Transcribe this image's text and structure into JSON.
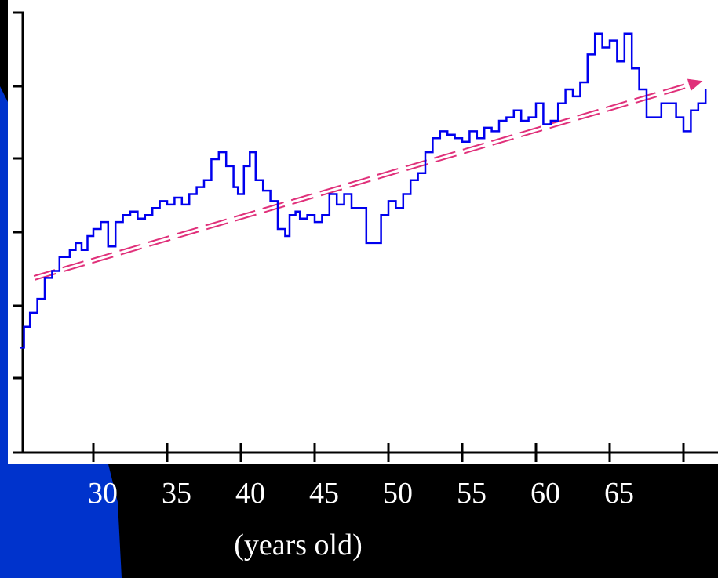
{
  "chart_data": {
    "type": "line",
    "title": "",
    "xlabel": "(years old)",
    "ylabel": "",
    "x_tick_labels": [
      "30",
      "35",
      "40",
      "45",
      "50",
      "55",
      "60",
      "65"
    ],
    "xlim": [
      25,
      72
    ],
    "ylim": [
      0,
      6.3
    ],
    "grid": false,
    "legend": "none",
    "series": [
      {
        "type": "line",
        "color": "#0000ee",
        "x": [
          25.0,
          25.3,
          25.7,
          26.2,
          26.7,
          27.2,
          27.7,
          28.0,
          28.4,
          28.8,
          29.2,
          29.6,
          30.0,
          30.5,
          31.0,
          31.5,
          32.0,
          32.5,
          33.0,
          33.5,
          34.0,
          34.5,
          35.0,
          35.5,
          36.0,
          36.5,
          37.0,
          37.5,
          38.0,
          38.5,
          39.0,
          39.5,
          39.8,
          40.2,
          40.6,
          41.0,
          41.5,
          42.0,
          42.5,
          42.8,
          43.0,
          43.3,
          43.7,
          44.0,
          44.5,
          45.0,
          45.5,
          46.0,
          46.5,
          47.0,
          47.5,
          48.0,
          48.5,
          49.0,
          49.5,
          50.0,
          50.5,
          51.0,
          51.5,
          52.0,
          52.5,
          53.0,
          53.5,
          54.0,
          54.5,
          55.0,
          55.5,
          56.0,
          56.5,
          57.0,
          57.5,
          58.0,
          58.5,
          59.0,
          59.5,
          60.0,
          60.5,
          61.0,
          61.5,
          62.0,
          62.5,
          63.0,
          63.5,
          64.0,
          64.5,
          65.0,
          65.5,
          66.0,
          66.5,
          67.0,
          67.5,
          68.0,
          68.5,
          69.0,
          69.5,
          70.0,
          70.5,
          71.0,
          71.5
        ],
        "y": [
          1.5,
          1.8,
          2.0,
          2.2,
          2.5,
          2.6,
          2.8,
          2.8,
          2.9,
          3.0,
          2.9,
          3.1,
          3.2,
          3.3,
          2.95,
          3.3,
          3.4,
          3.45,
          3.35,
          3.4,
          3.5,
          3.6,
          3.55,
          3.65,
          3.55,
          3.7,
          3.8,
          3.9,
          4.2,
          4.3,
          4.1,
          3.8,
          3.7,
          4.1,
          4.3,
          3.9,
          3.75,
          3.6,
          3.2,
          3.2,
          3.1,
          3.4,
          3.45,
          3.35,
          3.4,
          3.3,
          3.4,
          3.7,
          3.55,
          3.7,
          3.5,
          3.5,
          3.0,
          3.0,
          3.4,
          3.6,
          3.5,
          3.7,
          3.9,
          4.0,
          4.3,
          4.5,
          4.6,
          4.55,
          4.5,
          4.45,
          4.6,
          4.5,
          4.65,
          4.6,
          4.75,
          4.8,
          4.9,
          4.75,
          4.8,
          5.0,
          4.7,
          4.75,
          5.0,
          5.2,
          5.1,
          5.3,
          5.7,
          6.0,
          5.8,
          5.9,
          5.6,
          6.0,
          5.5,
          5.2,
          4.8,
          4.8,
          5.0,
          5.0,
          4.8,
          4.6,
          4.9,
          5.0,
          5.2
        ]
      },
      {
        "type": "trend-arrow",
        "style": "double-dashed",
        "color": "#e0307a",
        "x": [
          26.0,
          71.3
        ],
        "y": [
          2.5,
          5.32
        ]
      }
    ]
  }
}
